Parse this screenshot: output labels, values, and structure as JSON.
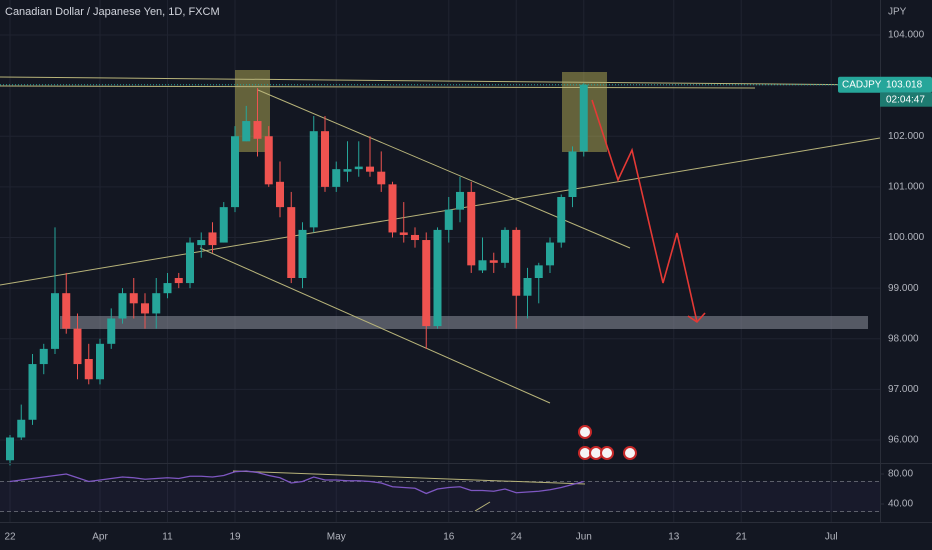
{
  "chart_data": {
    "type": "candlestick",
    "title": "Canadian Dollar / Japanese Yen, 1D, FXCM",
    "currency": "JPY",
    "symbol": "CADJPY",
    "countdown": "02:04:47",
    "up_color": "#26a69a",
    "down_color": "#ef5350",
    "grid": true,
    "categories": [
      "22",
      null,
      null,
      null,
      null,
      null,
      null,
      null,
      "Apr",
      null,
      null,
      null,
      null,
      null,
      "11",
      null,
      null,
      null,
      null,
      null,
      "19",
      null,
      null,
      null,
      null,
      null,
      null,
      null,
      null,
      "May",
      null,
      null,
      null,
      null,
      null,
      null,
      null,
      null,
      null,
      "16",
      null,
      null,
      null,
      null,
      null,
      "24",
      null,
      null,
      null,
      null,
      null,
      "Jun",
      null,
      null,
      null,
      null,
      null,
      null,
      null,
      "13",
      null,
      null,
      null,
      null,
      null,
      "21",
      null,
      null,
      null,
      null,
      null,
      null,
      null,
      "Jul",
      null,
      null,
      null,
      null
    ],
    "open": [
      95.6,
      96.05,
      96.4,
      97.5,
      97.8,
      98.9,
      98.2,
      97.6,
      97.2,
      97.9,
      98.4,
      98.9,
      98.7,
      98.5,
      98.9,
      99.2,
      99.1,
      99.85,
      100.1,
      99.9,
      100.6,
      101.9,
      102.3,
      102.0,
      101.1,
      100.6,
      99.2,
      100.2,
      102.1,
      101.0,
      101.3,
      101.35,
      101.4,
      101.3,
      101.05,
      100.1,
      100.05,
      99.95,
      98.25,
      100.15,
      100.55,
      100.9,
      99.35,
      99.55,
      99.5,
      100.15,
      98.85,
      99.2,
      99.45,
      99.9,
      100.8,
      101.7,
      null,
      null,
      null,
      null,
      null,
      null,
      null,
      null,
      null,
      null,
      null,
      null,
      null,
      null,
      null,
      null,
      null,
      null,
      null,
      null,
      null,
      null,
      null,
      null,
      null,
      null
    ],
    "high": [
      96.1,
      96.7,
      97.7,
      97.9,
      100.2,
      99.3,
      98.5,
      97.9,
      98.0,
      98.6,
      99.0,
      99.2,
      98.9,
      99.2,
      99.3,
      99.3,
      100.0,
      100.1,
      100.3,
      100.7,
      102.2,
      102.6,
      102.95,
      102.2,
      101.5,
      100.9,
      100.3,
      102.4,
      102.4,
      101.5,
      101.9,
      101.9,
      102.0,
      101.7,
      101.1,
      100.7,
      100.2,
      100.1,
      100.2,
      100.8,
      101.2,
      101.1,
      100.0,
      99.7,
      100.2,
      100.2,
      99.4,
      99.5,
      100.0,
      100.85,
      101.8,
      103.05,
      null,
      null,
      null,
      null,
      null,
      null,
      null,
      null,
      null,
      null,
      null,
      null,
      null,
      null,
      null,
      null,
      null,
      null,
      null,
      null,
      null,
      null,
      null,
      null,
      null,
      null
    ],
    "low": [
      95.5,
      96.0,
      96.3,
      97.3,
      97.7,
      98.1,
      97.2,
      97.1,
      97.1,
      97.8,
      98.3,
      98.4,
      98.2,
      98.2,
      98.8,
      99.0,
      99.0,
      99.6,
      99.7,
      99.9,
      100.5,
      101.9,
      101.6,
      101.0,
      100.4,
      99.1,
      99.0,
      100.1,
      100.9,
      100.9,
      101.1,
      101.2,
      101.2,
      100.9,
      100.0,
      99.9,
      99.8,
      97.8,
      98.2,
      99.9,
      100.3,
      99.3,
      99.3,
      99.3,
      99.4,
      98.2,
      98.4,
      98.7,
      99.3,
      99.8,
      100.6,
      101.6,
      null,
      null,
      null,
      null,
      null,
      null,
      null,
      null,
      null,
      null,
      null,
      null,
      null,
      null,
      null,
      null,
      null,
      null,
      null,
      null,
      null,
      null,
      null,
      null,
      null,
      null
    ],
    "close": [
      96.05,
      96.4,
      97.5,
      97.8,
      98.9,
      98.2,
      97.5,
      97.2,
      97.9,
      98.4,
      98.9,
      98.7,
      98.5,
      98.9,
      99.1,
      99.1,
      99.9,
      99.95,
      99.85,
      100.6,
      102.0,
      102.3,
      101.95,
      101.05,
      100.6,
      99.2,
      100.15,
      102.1,
      101.0,
      101.35,
      101.35,
      101.4,
      101.3,
      101.05,
      100.1,
      100.05,
      99.95,
      98.25,
      100.15,
      100.55,
      100.9,
      99.45,
      99.55,
      99.5,
      100.15,
      98.85,
      99.2,
      99.45,
      99.9,
      100.8,
      101.7,
      103.018,
      null,
      null,
      null,
      null,
      null,
      null,
      null,
      null,
      null,
      null,
      null,
      null,
      null,
      null,
      null,
      null,
      null,
      null,
      null,
      null,
      null,
      null,
      null,
      null,
      null,
      null
    ],
    "ylim": [
      95.546,
      104.691
    ],
    "yticks": [
      {
        "value": 96,
        "label": "96.000"
      },
      {
        "value": 97,
        "label": "97.000"
      },
      {
        "value": 98,
        "label": "98.000"
      },
      {
        "value": 99,
        "label": "99.000"
      },
      {
        "value": 100,
        "label": "100.000"
      },
      {
        "value": 101,
        "label": "101.000"
      },
      {
        "value": 102,
        "label": "102.000"
      },
      {
        "value": 103,
        "label": "103.000"
      },
      {
        "value": 104,
        "label": "104.000"
      }
    ],
    "rsi": {
      "type": "line",
      "color": "#7e57c2",
      "values": [
        70,
        72,
        74,
        76,
        78,
        80,
        75,
        70,
        72,
        74,
        76,
        75,
        73,
        74,
        75,
        74,
        77,
        77,
        76,
        78,
        83,
        84,
        82,
        78,
        75,
        68,
        70,
        76,
        72,
        72,
        71,
        71,
        70,
        68,
        63,
        62,
        61,
        54,
        60,
        62,
        63,
        58,
        58,
        57,
        60,
        55,
        56,
        57,
        59,
        62,
        66,
        70,
        null,
        null,
        null,
        null,
        null,
        null,
        null,
        null,
        null,
        null,
        null,
        null,
        null,
        null,
        null,
        null,
        null,
        null,
        null,
        null,
        null,
        null,
        null,
        null,
        null,
        null
      ],
      "ylim": [
        21.3,
        94.7
      ],
      "yticks": [
        {
          "value": 80,
          "label": "80.00"
        },
        {
          "value": 40,
          "label": "40.00"
        }
      ]
    }
  }
}
